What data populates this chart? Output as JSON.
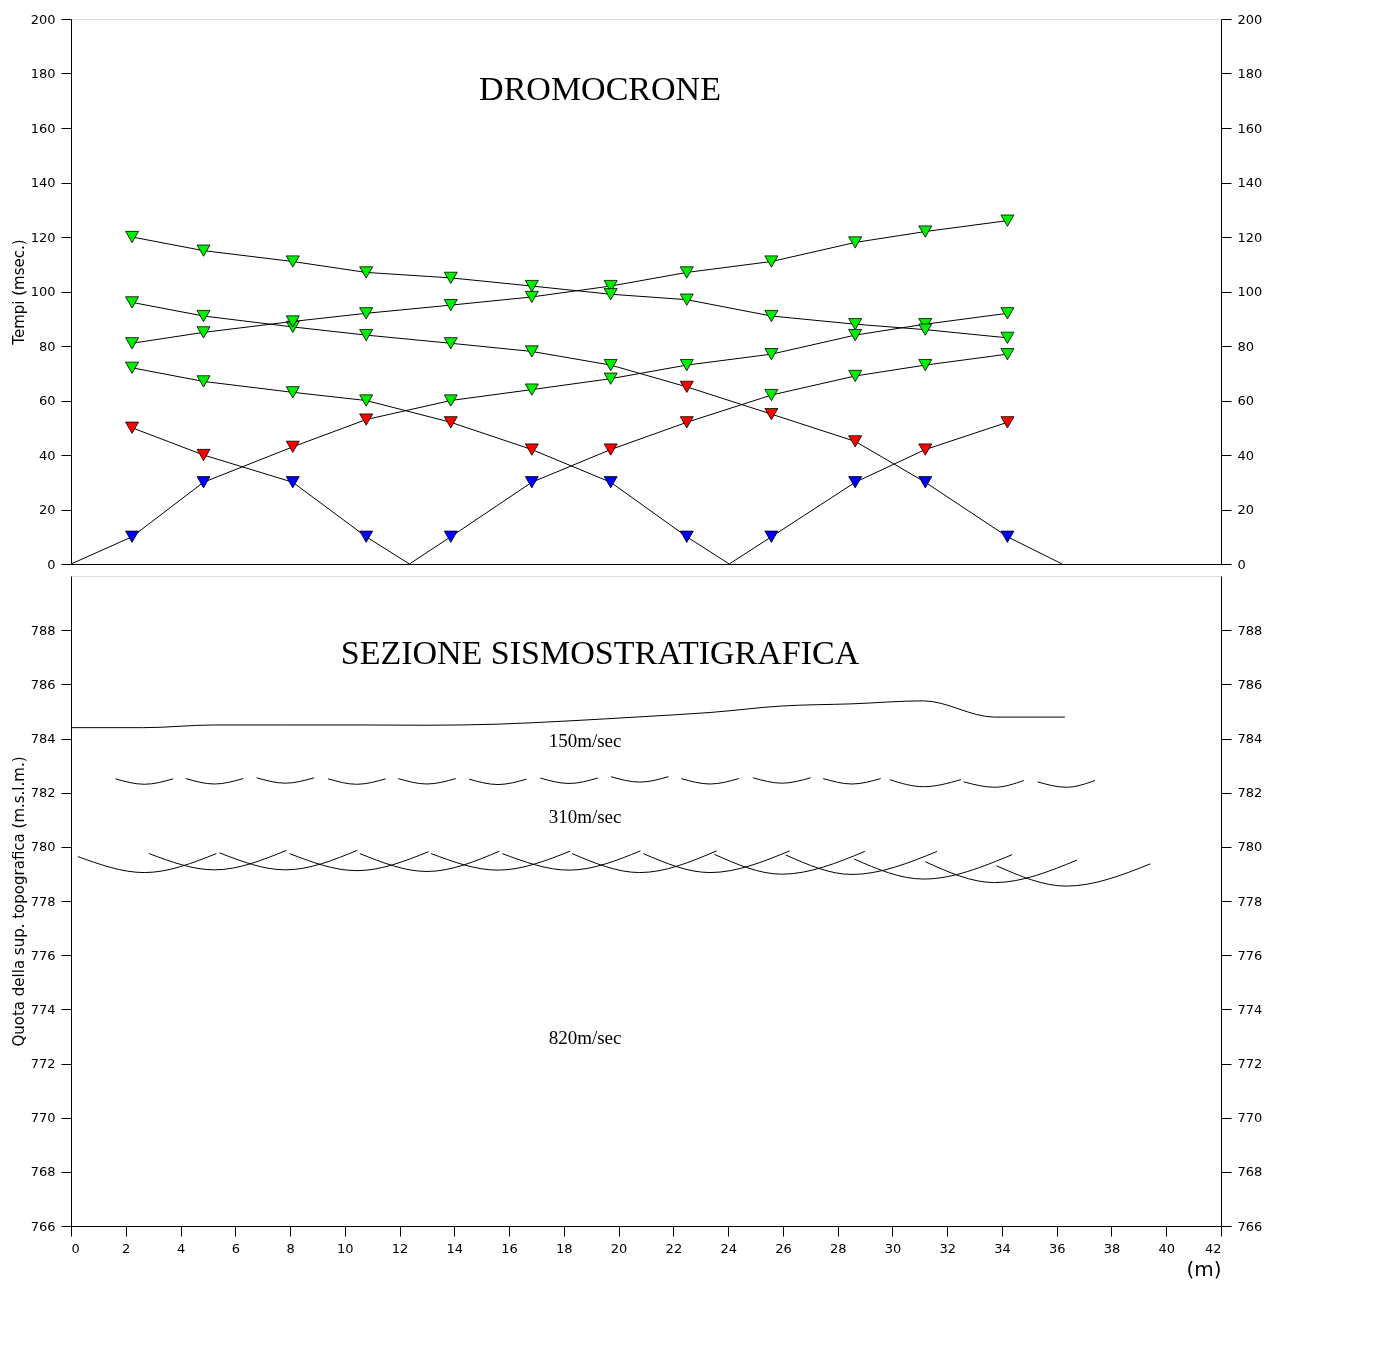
{
  "chart_data": [
    {
      "type": "line",
      "title": "DROMOCRONE",
      "ylabel": "Tempi  (msec.)",
      "marker": "triangle",
      "grid": false,
      "tick_labels": "y",
      "xlim": [
        0,
        42
      ],
      "xticks": [
        0,
        2,
        4,
        6,
        8,
        10,
        12,
        14,
        16,
        18,
        20,
        22,
        24,
        26,
        28,
        30,
        32,
        34,
        36,
        38,
        40,
        42
      ],
      "ylim": [
        0,
        200
      ],
      "yticks": [
        0,
        20,
        40,
        60,
        80,
        100,
        120,
        140,
        160,
        180,
        200
      ],
      "y2lim": [
        0,
        200
      ],
      "y2ticks": [
        0,
        20,
        40,
        60,
        80,
        100,
        120,
        140,
        160,
        180,
        200
      ],
      "series": [
        {
          "color": "#000000",
          "x": [
            0,
            2.23,
            4.84,
            8.1,
            10.78,
            13.87,
            16.83,
            19.71,
            22.49,
            25.58,
            28.64,
            31.2,
            34.2
          ],
          "values": [
            0,
            10,
            30,
            43,
            53,
            60,
            64,
            68,
            73,
            77,
            84,
            88,
            92
          ],
          "colors": [
            null,
            "#0000ff",
            "#0000ff",
            "#ff0000",
            "#ff0000",
            "#00ee00",
            "#00ee00",
            "#00ee00",
            "#00ee00",
            "#00ee00",
            "#00ee00",
            "#00ee00",
            "#00ee00"
          ]
        },
        {
          "color": "#000000",
          "x": [
            2.23,
            4.84,
            8.1,
            10.78,
            12.36,
            13.87,
            16.83,
            19.71,
            22.49,
            25.58,
            28.64,
            31.2,
            34.2
          ],
          "values": [
            50,
            40,
            30,
            10,
            0,
            10,
            30,
            42,
            52,
            62,
            69,
            73,
            77
          ],
          "colors": [
            "#ff0000",
            "#ff0000",
            "#0000ff",
            "#0000ff",
            null,
            "#0000ff",
            "#0000ff",
            "#ff0000",
            "#ff0000",
            "#00ee00",
            "#00ee00",
            "#00ee00",
            "#00ee00"
          ]
        },
        {
          "color": "#000000",
          "x": [
            2.23,
            4.84,
            8.1,
            10.78,
            13.87,
            16.83,
            19.71,
            22.49,
            24.04,
            25.58,
            28.64,
            31.2,
            34.2
          ],
          "values": [
            72,
            67,
            63,
            60,
            52,
            42,
            30,
            10,
            0,
            10,
            30,
            42,
            52
          ],
          "colors": [
            "#00ee00",
            "#00ee00",
            "#00ee00",
            "#00ee00",
            "#ff0000",
            "#ff0000",
            "#0000ff",
            "#0000ff",
            null,
            "#0000ff",
            "#0000ff",
            "#ff0000",
            "#ff0000"
          ]
        },
        {
          "color": "#000000",
          "x": [
            2.23,
            4.84,
            8.1,
            10.78,
            13.87,
            16.83,
            19.71,
            22.49,
            25.58,
            28.64,
            31.2,
            34.2,
            36.2
          ],
          "values": [
            96,
            91,
            87,
            84,
            81,
            78,
            73,
            65,
            55,
            45,
            30,
            10,
            0
          ],
          "colors": [
            "#00ee00",
            "#00ee00",
            "#00ee00",
            "#00ee00",
            "#00ee00",
            "#00ee00",
            "#00ee00",
            "#ff0000",
            "#ff0000",
            "#ff0000",
            "#0000ff",
            "#0000ff",
            null
          ]
        },
        {
          "color": "#000000",
          "x": [
            2.23,
            4.84,
            8.1,
            10.78,
            13.87,
            16.83,
            19.71,
            22.49,
            25.58,
            28.64,
            31.2,
            34.2
          ],
          "values": [
            81,
            85,
            89,
            92,
            95,
            98,
            102,
            107,
            111,
            118,
            122,
            126
          ],
          "colors": [
            "#00ee00",
            "#00ee00",
            "#00ee00",
            "#00ee00",
            "#00ee00",
            "#00ee00",
            "#00ee00",
            "#00ee00",
            "#00ee00",
            "#00ee00",
            "#00ee00",
            "#00ee00"
          ]
        },
        {
          "color": "#000000",
          "x": [
            2.23,
            4.84,
            8.1,
            10.78,
            13.87,
            16.83,
            19.71,
            22.49,
            25.58,
            28.64,
            31.2,
            34.2
          ],
          "values": [
            120,
            115,
            111,
            107,
            105,
            102,
            99,
            97,
            91,
            88,
            86,
            83
          ],
          "colors": [
            "#00ee00",
            "#00ee00",
            "#00ee00",
            "#00ee00",
            "#00ee00",
            "#00ee00",
            "#00ee00",
            "#00ee00",
            "#00ee00",
            "#00ee00",
            "#00ee00",
            "#00ee00"
          ]
        }
      ]
    },
    {
      "type": "line",
      "title": "SEZIONE SISMOSTRATIGRAFICA",
      "xlabel": "(m)",
      "ylabel": "Quota della sup. topografica  (m.s.l.m.)",
      "marker": "none",
      "grid": false,
      "xlim": [
        0,
        42
      ],
      "xticks": [
        0,
        2,
        4,
        6,
        8,
        10,
        12,
        14,
        16,
        18,
        20,
        22,
        24,
        26,
        28,
        30,
        32,
        34,
        36,
        38,
        40,
        42
      ],
      "ylim": [
        766,
        790
      ],
      "yticks": [
        766,
        768,
        770,
        772,
        774,
        776,
        778,
        780,
        782,
        784,
        786,
        788
      ],
      "y2lim": [
        766,
        790
      ],
      "y2ticks": [
        766,
        768,
        770,
        772,
        774,
        776,
        778,
        780,
        782,
        784,
        786,
        788
      ],
      "annotations": [
        "150m/sec",
        "310m/sec",
        "820m/sec"
      ],
      "series": [
        {
          "color": "#000000",
          "x": [
            0,
            2.65,
            5.24,
            7.83,
            10.44,
            13.0,
            15.59,
            18.19,
            20.77,
            23.34,
            25.96,
            28.52,
            31.13,
            33.73,
            36.3
          ],
          "values": [
            784.4,
            784.4,
            784.5,
            784.5,
            784.5,
            784.49,
            784.53,
            784.65,
            784.8,
            784.96,
            785.2,
            785.28,
            785.39,
            784.79,
            784.79
          ]
        },
        {
          "color": "#000000",
          "x": [
            1.63,
            2.68,
            3.73
          ],
          "values": [
            782.51,
            782.31,
            782.51
          ]
        },
        {
          "color": "#000000",
          "x": [
            4.19,
            5.24,
            6.29
          ],
          "values": [
            782.52,
            782.32,
            782.52
          ]
        },
        {
          "color": "#000000",
          "x": [
            6.78,
            7.83,
            8.88
          ],
          "values": [
            782.55,
            782.35,
            782.55
          ]
        },
        {
          "color": "#000000",
          "x": [
            9.39,
            10.44,
            11.49
          ],
          "values": [
            782.51,
            782.31,
            782.51
          ]
        },
        {
          "color": "#000000",
          "x": [
            11.95,
            13.0,
            14.05
          ],
          "values": [
            782.52,
            782.32,
            782.52
          ]
        },
        {
          "color": "#000000",
          "x": [
            14.54,
            15.59,
            16.64
          ],
          "values": [
            782.5,
            782.3,
            782.5
          ]
        },
        {
          "color": "#000000",
          "x": [
            17.14,
            18.19,
            19.24
          ],
          "values": [
            782.54,
            782.34,
            782.54
          ]
        },
        {
          "color": "#000000",
          "x": [
            19.72,
            20.77,
            21.82
          ],
          "values": [
            782.59,
            782.39,
            782.59
          ]
        },
        {
          "color": "#000000",
          "x": [
            22.29,
            23.34,
            24.39
          ],
          "values": [
            782.52,
            782.32,
            782.52
          ]
        },
        {
          "color": "#000000",
          "x": [
            24.91,
            25.96,
            27.01
          ],
          "values": [
            782.55,
            782.35,
            782.55
          ]
        },
        {
          "color": "#000000",
          "x": [
            27.47,
            28.52,
            29.57
          ],
          "values": [
            782.52,
            782.32,
            782.52
          ]
        },
        {
          "color": "#000000",
          "x": [
            29.9,
            31.13,
            32.5
          ],
          "values": [
            782.48,
            782.22,
            782.48
          ]
        },
        {
          "color": "#000000",
          "x": [
            32.6,
            33.73,
            34.8
          ],
          "values": [
            782.4,
            782.2,
            782.45
          ]
        },
        {
          "color": "#000000",
          "x": [
            35.3,
            36.35,
            37.4
          ],
          "values": [
            782.4,
            782.2,
            782.45
          ]
        },
        {
          "color": "#000000",
          "x": [
            0.25,
            2.68,
            5.31
          ],
          "values": [
            779.64,
            779.05,
            779.75
          ]
        },
        {
          "color": "#000000",
          "x": [
            2.85,
            5.24,
            7.87
          ],
          "values": [
            779.75,
            779.15,
            779.87
          ]
        },
        {
          "color": "#000000",
          "x": [
            5.42,
            7.83,
            10.46
          ],
          "values": [
            779.78,
            779.15,
            779.87
          ]
        },
        {
          "color": "#000000",
          "x": [
            7.98,
            10.44,
            13.06
          ],
          "values": [
            779.75,
            779.12,
            779.82
          ]
        },
        {
          "color": "#000000",
          "x": [
            10.55,
            13.0,
            15.65
          ],
          "values": [
            779.75,
            779.09,
            779.84
          ]
        },
        {
          "color": "#000000",
          "x": [
            13.15,
            15.59,
            18.23
          ],
          "values": [
            779.75,
            779.14,
            779.84
          ]
        },
        {
          "color": "#000000",
          "x": [
            15.75,
            18.19,
            20.8
          ],
          "values": [
            779.75,
            779.14,
            779.85
          ]
        },
        {
          "color": "#000000",
          "x": [
            18.3,
            20.77,
            23.58
          ],
          "values": [
            779.75,
            779.05,
            779.85
          ]
        },
        {
          "color": "#000000",
          "x": [
            20.9,
            23.34,
            26.25
          ],
          "values": [
            779.75,
            779.05,
            779.85
          ]
        },
        {
          "color": "#000000",
          "x": [
            23.5,
            25.96,
            28.99
          ],
          "values": [
            779.72,
            778.99,
            779.83
          ]
        },
        {
          "color": "#000000",
          "x": [
            26.1,
            28.52,
            31.63
          ],
          "values": [
            779.7,
            778.98,
            779.83
          ]
        },
        {
          "color": "#000000",
          "x": [
            28.6,
            31.13,
            34.37
          ],
          "values": [
            779.55,
            778.81,
            779.71
          ]
        },
        {
          "color": "#000000",
          "x": [
            31.2,
            33.73,
            36.74
          ],
          "values": [
            779.45,
            778.68,
            779.51
          ]
        },
        {
          "color": "#000000",
          "x": [
            33.8,
            36.35,
            39.42
          ],
          "values": [
            779.3,
            778.55,
            779.37
          ]
        }
      ]
    }
  ]
}
